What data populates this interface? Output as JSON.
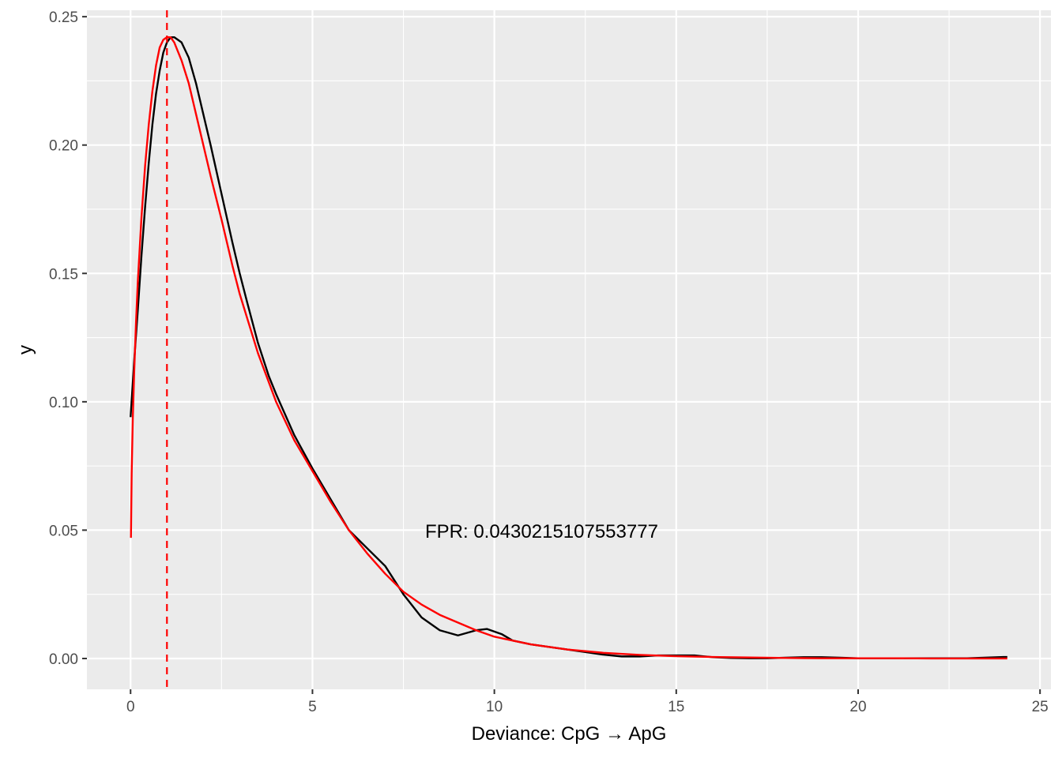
{
  "chart_data": {
    "type": "line",
    "title": "",
    "xlabel": "Deviance: CpG → ApG",
    "ylabel": "y",
    "xlim": [
      -1.2,
      25.3
    ],
    "ylim": [
      -0.012,
      0.2525
    ],
    "x_ticks": [
      0,
      5,
      10,
      15,
      20,
      25
    ],
    "x_tick_labels": [
      "0",
      "5",
      "10",
      "15",
      "20",
      "25"
    ],
    "y_ticks": [
      0.0,
      0.05,
      0.1,
      0.15,
      0.2,
      0.25
    ],
    "y_tick_labels": [
      "0.00",
      "0.05",
      "0.10",
      "0.15",
      "0.20",
      "0.25"
    ],
    "grid": true,
    "background": "#ebebeb",
    "gridline_color": "#ffffff",
    "series": [
      {
        "color": "#000000",
        "style": "solid",
        "x": [
          0.0,
          0.1,
          0.2,
          0.3,
          0.4,
          0.5,
          0.6,
          0.7,
          0.8,
          0.9,
          1.0,
          1.1,
          1.2,
          1.4,
          1.6,
          1.8,
          2.0,
          2.2,
          2.5,
          2.8,
          3.0,
          3.2,
          3.5,
          3.8,
          4.0,
          4.5,
          5.0,
          5.5,
          6.0,
          6.5,
          7.0,
          7.5,
          8.0,
          8.5,
          9.0,
          9.5,
          9.8,
          10.2,
          10.5,
          11.0,
          11.5,
          12.0,
          12.5,
          13.0,
          13.5,
          14.0,
          14.5,
          15.0,
          15.5,
          16.0,
          16.5,
          17.0,
          17.5,
          18.0,
          18.5,
          19.0,
          19.5,
          20.0,
          21.0,
          22.0,
          23.0,
          24.0,
          24.1
        ],
        "y": [
          0.094,
          0.116,
          0.136,
          0.157,
          0.176,
          0.193,
          0.208,
          0.22,
          0.229,
          0.236,
          0.24,
          0.242,
          0.242,
          0.24,
          0.234,
          0.224,
          0.212,
          0.2,
          0.181,
          0.162,
          0.15,
          0.139,
          0.123,
          0.11,
          0.103,
          0.087,
          0.074,
          0.062,
          0.05,
          0.043,
          0.036,
          0.025,
          0.016,
          0.011,
          0.009,
          0.011,
          0.0115,
          0.0095,
          0.007,
          0.0055,
          0.0045,
          0.0035,
          0.0025,
          0.0015,
          0.0008,
          0.0008,
          0.0012,
          0.0012,
          0.0012,
          0.0005,
          0.0002,
          0.0001,
          0.0001,
          0.0003,
          0.0005,
          0.0005,
          0.0003,
          0.0001,
          0.0001,
          0.0001,
          0.0001,
          0.0006,
          0.0006
        ]
      },
      {
        "color": "#ff0000",
        "style": "solid",
        "x": [
          0.01,
          0.03,
          0.06,
          0.1,
          0.15,
          0.2,
          0.3,
          0.4,
          0.5,
          0.6,
          0.7,
          0.8,
          0.9,
          1.0,
          1.1,
          1.2,
          1.4,
          1.6,
          1.8,
          2.0,
          2.2,
          2.5,
          2.8,
          3.0,
          3.5,
          4.0,
          4.5,
          5.0,
          5.5,
          6.0,
          6.5,
          7.0,
          7.5,
          8.0,
          8.5,
          9.0,
          9.5,
          10.0,
          11.0,
          12.0,
          13.0,
          14.0,
          15.0,
          16.0,
          17.0,
          18.0,
          19.0,
          20.0,
          21.0,
          22.0,
          23.0,
          24.0,
          24.1
        ],
        "y": [
          0.047,
          0.072,
          0.093,
          0.112,
          0.131,
          0.147,
          0.172,
          0.192,
          0.208,
          0.221,
          0.231,
          0.238,
          0.241,
          0.242,
          0.242,
          0.24,
          0.233,
          0.224,
          0.212,
          0.2,
          0.188,
          0.171,
          0.153,
          0.142,
          0.119,
          0.1,
          0.085,
          0.073,
          0.061,
          0.05,
          0.041,
          0.033,
          0.026,
          0.021,
          0.017,
          0.014,
          0.011,
          0.0085,
          0.0055,
          0.0035,
          0.0022,
          0.0014,
          0.0009,
          0.0006,
          0.0004,
          0.0002,
          0.0001,
          0.0001,
          0.0001,
          0.0,
          0.0,
          0.0,
          0.0
        ]
      }
    ],
    "vline": {
      "x": 1.0,
      "color": "#ff0000",
      "style": "dashed"
    },
    "annotations": [
      {
        "text": "FPR: 0.0430215107553777",
        "x": 11.3,
        "y": 0.0495
      }
    ]
  }
}
